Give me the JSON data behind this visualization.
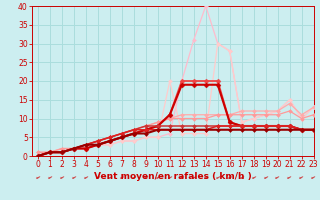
{
  "title": "",
  "xlabel": "Vent moyen/en rafales ( km/h )",
  "ylabel": "",
  "xlim": [
    -0.5,
    23
  ],
  "ylim": [
    0,
    40
  ],
  "yticks": [
    0,
    5,
    10,
    15,
    20,
    25,
    30,
    35,
    40
  ],
  "xticks": [
    0,
    1,
    2,
    3,
    4,
    5,
    6,
    7,
    8,
    9,
    10,
    11,
    12,
    13,
    14,
    15,
    16,
    17,
    18,
    19,
    20,
    21,
    22,
    23
  ],
  "background_color": "#cceef0",
  "grid_color": "#aadddd",
  "lines": [
    {
      "x": [
        0,
        1,
        2,
        3,
        4,
        5,
        6,
        7,
        8,
        9,
        10,
        11,
        12,
        13,
        14,
        15,
        16,
        17,
        18,
        19,
        20,
        21,
        22,
        23
      ],
      "y": [
        0,
        1,
        1,
        2,
        2,
        3,
        3,
        4,
        4,
        5,
        5,
        6,
        20,
        31,
        40,
        30,
        28,
        9,
        10,
        11,
        12,
        15,
        10,
        13
      ],
      "color": "#ffbbcc",
      "lw": 0.9,
      "marker": "D",
      "ms": 2.0
    },
    {
      "x": [
        0,
        1,
        2,
        3,
        4,
        5,
        6,
        7,
        8,
        9,
        10,
        11,
        12,
        13,
        14,
        15,
        16,
        17,
        18,
        19,
        20,
        21,
        22,
        23
      ],
      "y": [
        0,
        1,
        1,
        2,
        2,
        3,
        3,
        4,
        4,
        5,
        5,
        20,
        6,
        6,
        6,
        30,
        28,
        9,
        10,
        11,
        12,
        15,
        10,
        13
      ],
      "color": "#ffcccc",
      "lw": 0.9,
      "marker": "D",
      "ms": 2.0
    },
    {
      "x": [
        0,
        1,
        2,
        3,
        4,
        5,
        6,
        7,
        8,
        9,
        10,
        11,
        12,
        13,
        14,
        15,
        16,
        17,
        18,
        19,
        20,
        21,
        22,
        23
      ],
      "y": [
        1,
        1,
        2,
        2,
        3,
        4,
        5,
        6,
        7,
        8,
        9,
        10,
        11,
        11,
        11,
        11,
        11,
        12,
        12,
        12,
        12,
        14,
        11,
        13
      ],
      "color": "#ffaaaa",
      "lw": 0.9,
      "marker": "D",
      "ms": 2.0
    },
    {
      "x": [
        0,
        1,
        2,
        3,
        4,
        5,
        6,
        7,
        8,
        9,
        10,
        11,
        12,
        13,
        14,
        15,
        16,
        17,
        18,
        19,
        20,
        21,
        22,
        23
      ],
      "y": [
        1,
        1,
        2,
        2,
        3,
        4,
        5,
        6,
        7,
        8,
        9,
        10,
        10,
        10,
        10,
        11,
        11,
        11,
        11,
        11,
        11,
        12,
        10,
        11
      ],
      "color": "#ff9999",
      "lw": 0.9,
      "marker": "D",
      "ms": 2.0
    },
    {
      "x": [
        0,
        1,
        2,
        3,
        4,
        5,
        6,
        7,
        8,
        9,
        10,
        11,
        12,
        13,
        14,
        15,
        16,
        17,
        18,
        19,
        20,
        21,
        22,
        23
      ],
      "y": [
        0,
        1,
        1,
        2,
        2,
        3,
        4,
        5,
        6,
        7,
        8,
        11,
        20,
        20,
        20,
        20,
        9,
        8,
        8,
        8,
        8,
        8,
        7,
        7
      ],
      "color": "#ee4444",
      "lw": 1.3,
      "marker": "D",
      "ms": 2.5
    },
    {
      "x": [
        0,
        1,
        2,
        3,
        4,
        5,
        6,
        7,
        8,
        9,
        10,
        11,
        12,
        13,
        14,
        15,
        16,
        17,
        18,
        19,
        20,
        21,
        22,
        23
      ],
      "y": [
        0,
        1,
        1,
        2,
        2,
        3,
        4,
        5,
        6,
        7,
        8,
        11,
        19,
        19,
        19,
        19,
        9,
        8,
        8,
        8,
        8,
        8,
        7,
        7
      ],
      "color": "#cc0000",
      "lw": 1.5,
      "marker": "D",
      "ms": 2.5
    },
    {
      "x": [
        0,
        1,
        2,
        3,
        4,
        5,
        6,
        7,
        8,
        9,
        10,
        11,
        12,
        13,
        14,
        15,
        16,
        17,
        18,
        19,
        20,
        21,
        22,
        23
      ],
      "y": [
        0,
        1,
        1,
        2,
        3,
        4,
        5,
        6,
        7,
        8,
        8,
        8,
        8,
        8,
        8,
        8,
        8,
        8,
        8,
        8,
        8,
        8,
        7,
        7
      ],
      "color": "#cc3333",
      "lw": 1.1,
      "marker": "D",
      "ms": 2.0
    },
    {
      "x": [
        0,
        1,
        2,
        3,
        4,
        5,
        6,
        7,
        8,
        9,
        10,
        11,
        12,
        13,
        14,
        15,
        16,
        17,
        18,
        19,
        20,
        21,
        22,
        23
      ],
      "y": [
        0,
        1,
        1,
        2,
        3,
        4,
        5,
        6,
        7,
        7,
        7,
        7,
        7,
        7,
        7,
        8,
        8,
        8,
        8,
        8,
        8,
        8,
        7,
        7
      ],
      "color": "#dd2222",
      "lw": 1.1,
      "marker": "D",
      "ms": 2.0
    },
    {
      "x": [
        0,
        1,
        2,
        3,
        4,
        5,
        6,
        7,
        8,
        9,
        10,
        11,
        12,
        13,
        14,
        15,
        16,
        17,
        18,
        19,
        20,
        21,
        22,
        23
      ],
      "y": [
        0,
        1,
        1,
        2,
        3,
        3,
        4,
        5,
        6,
        6,
        7,
        7,
        7,
        7,
        7,
        7,
        7,
        7,
        7,
        7,
        7,
        7,
        7,
        7
      ],
      "color": "#990000",
      "lw": 1.5,
      "marker": "D",
      "ms": 2.0
    }
  ],
  "arrow_color": "#cc0000",
  "xlabel_color": "#cc0000",
  "xlabel_fontsize": 6.5,
  "tick_fontsize": 5.5,
  "tick_color": "#cc0000"
}
